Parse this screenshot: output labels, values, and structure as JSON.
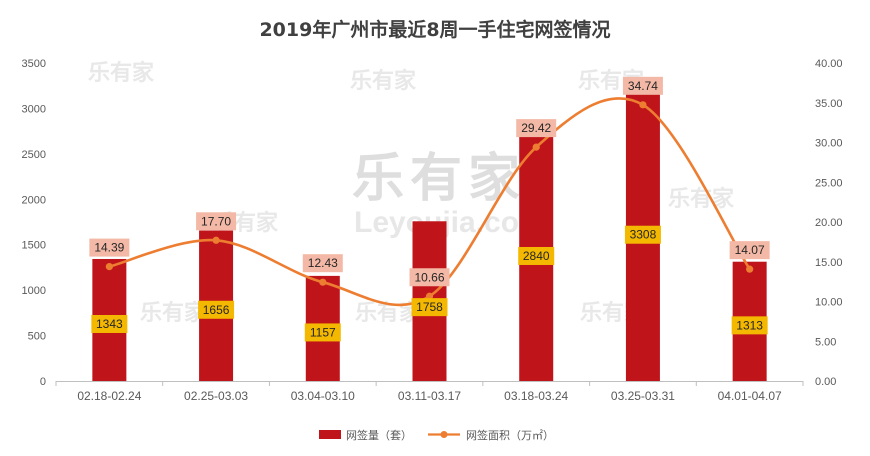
{
  "chart_data": {
    "type": "bar",
    "title": "2019年广州市最近8周一手住宅网签情况",
    "categories": [
      "02.18-02.24",
      "02.25-03.03",
      "03.04-03.10",
      "03.11-03.17",
      "03.18-03.24",
      "03.25-03.31",
      "04.01-04.07"
    ],
    "series": [
      {
        "name": "网签量（套）",
        "type": "bar",
        "axis": "left",
        "color": "#c0141b",
        "values": [
          1343,
          1656,
          1157,
          1758,
          2840,
          3308,
          1313
        ],
        "labels": [
          "1343",
          "1656",
          "1157",
          "1758",
          "2840",
          "3308",
          "1313"
        ]
      },
      {
        "name": "网签面积（万㎡）",
        "type": "line",
        "axis": "right",
        "color": "#ed7d31",
        "values": [
          14.39,
          17.7,
          12.43,
          10.66,
          29.42,
          34.74,
          14.07
        ],
        "labels": [
          "14.39",
          "17.70",
          "12.43",
          "10.66",
          "29.42",
          "34.74",
          "14.07"
        ]
      }
    ],
    "y_left": {
      "min": 0,
      "max": 3500,
      "ticks": [
        "0",
        "500",
        "1000",
        "1500",
        "2000",
        "2500",
        "3000",
        "3500"
      ]
    },
    "y_right": {
      "min": 0,
      "max": 40,
      "ticks": [
        "0.00",
        "5.00",
        "10.00",
        "15.00",
        "20.00",
        "25.00",
        "30.00",
        "35.00",
        "40.00"
      ]
    },
    "grid": false,
    "legend_position": "bottom",
    "watermark": "乐有家 Leyoujia.com"
  }
}
